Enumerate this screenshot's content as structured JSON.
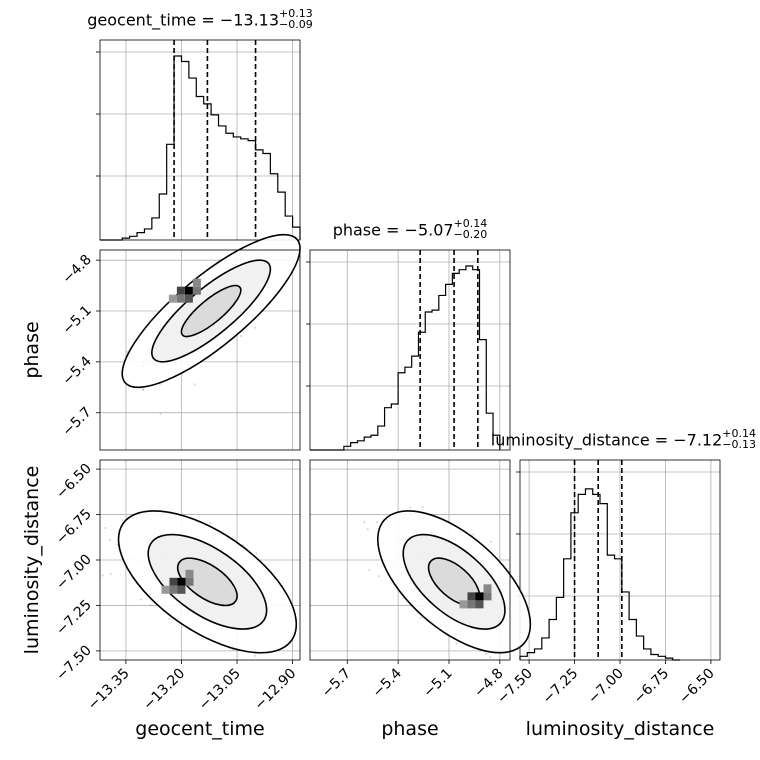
{
  "chart_data": {
    "type": "corner",
    "parameters": [
      "geocent_time",
      "phase",
      "luminosity_distance"
    ],
    "titles": [
      {
        "label": "geocent_time = −13.13",
        "sup": "+0.13",
        "sub": "−0.09"
      },
      {
        "label": "phase = −5.07",
        "sup": "+0.14",
        "sub": "−0.20"
      },
      {
        "label": "luminosity_distance = −7.12",
        "sup": "+0.14",
        "sub": "−0.13"
      }
    ],
    "axes": [
      {
        "name": "geocent_time",
        "range": [
          -13.42,
          -12.88
        ],
        "ticks": [
          -13.35,
          -13.2,
          -13.05,
          -12.9
        ],
        "tick_labels": [
          "−13.35",
          "−13.20",
          "−13.05",
          "−12.90"
        ]
      },
      {
        "name": "phase",
        "range": [
          -5.92,
          -4.74
        ],
        "ticks": [
          -5.7,
          -5.4,
          -5.1,
          -4.8
        ],
        "tick_labels": [
          "−5.7",
          "−5.4",
          "−5.1",
          "−4.8"
        ]
      },
      {
        "name": "luminosity_distance",
        "range": [
          -7.55,
          -6.45
        ],
        "ticks": [
          -7.5,
          -7.25,
          -7.0,
          -6.75,
          -6.5
        ],
        "tick_labels": [
          "−7.50",
          "−7.25",
          "−7.00",
          "−6.75",
          "−6.50"
        ]
      }
    ],
    "histograms": [
      {
        "param": "geocent_time",
        "quantiles": [
          -13.22,
          -13.13,
          -13.0
        ],
        "edges": [
          -13.42,
          -13.4,
          -13.38,
          -13.36,
          -13.34,
          -13.32,
          -13.3,
          -13.28,
          -13.26,
          -13.24,
          -13.22,
          -13.2,
          -13.18,
          -13.16,
          -13.14,
          -13.12,
          -13.1,
          -13.08,
          -13.06,
          -13.04,
          -13.02,
          -13.0,
          -12.98,
          -12.96,
          -12.94,
          -12.92,
          -12.9,
          -12.88
        ],
        "counts": [
          0,
          0,
          0,
          0.01,
          0.02,
          0.04,
          0.06,
          0.12,
          0.25,
          0.52,
          1.0,
          0.97,
          0.88,
          0.78,
          0.74,
          0.68,
          0.62,
          0.58,
          0.56,
          0.55,
          0.54,
          0.49,
          0.47,
          0.36,
          0.26,
          0.13,
          0.07
        ]
      },
      {
        "param": "phase",
        "quantiles": [
          -5.27,
          -5.07,
          -4.93
        ],
        "edges": [
          -5.92,
          -5.88,
          -5.84,
          -5.8,
          -5.76,
          -5.72,
          -5.68,
          -5.64,
          -5.6,
          -5.56,
          -5.52,
          -5.48,
          -5.44,
          -5.4,
          -5.36,
          -5.32,
          -5.28,
          -5.24,
          -5.2,
          -5.16,
          -5.12,
          -5.08,
          -5.04,
          -5.0,
          -4.96,
          -4.92,
          -4.88,
          -4.84,
          -4.8
        ],
        "counts": [
          0,
          0,
          0,
          0,
          0,
          0.02,
          0.04,
          0.05,
          0.07,
          0.08,
          0.13,
          0.23,
          0.25,
          0.42,
          0.45,
          0.51,
          0.64,
          0.75,
          0.76,
          0.84,
          0.9,
          0.96,
          0.98,
          1.0,
          0.98,
          0.6,
          0.2,
          0.08
        ]
      },
      {
        "param": "luminosity_distance",
        "quantiles": [
          -7.25,
          -7.12,
          -6.99
        ],
        "edges": [
          -7.55,
          -7.51,
          -7.47,
          -7.43,
          -7.39,
          -7.35,
          -7.31,
          -7.27,
          -7.23,
          -7.19,
          -7.15,
          -7.11,
          -7.07,
          -7.03,
          -6.99,
          -6.95,
          -6.91,
          -6.87,
          -6.83,
          -6.79,
          -6.75,
          -6.71,
          -6.67
        ],
        "counts": [
          0.02,
          0.04,
          0.06,
          0.12,
          0.22,
          0.34,
          0.55,
          0.8,
          0.9,
          0.93,
          0.9,
          0.85,
          0.57,
          0.55,
          0.37,
          0.22,
          0.13,
          0.06,
          0.03,
          0.02,
          0.01,
          0.0
        ]
      }
    ],
    "joint": [
      {
        "x": "geocent_time",
        "y": "phase",
        "mean": [
          -13.12,
          -5.1
        ],
        "std": [
          0.08,
          0.15
        ],
        "corr": 0.82,
        "peak": [
          -13.18,
          -4.98
        ]
      },
      {
        "x": "geocent_time",
        "y": "luminosity_distance",
        "mean": [
          -13.13,
          -7.12
        ],
        "std": [
          0.08,
          0.13
        ],
        "corr": -0.6,
        "peak": [
          -13.2,
          -7.12
        ]
      },
      {
        "x": "phase",
        "y": "luminosity_distance",
        "mean": [
          -5.07,
          -7.12
        ],
        "std": [
          0.15,
          0.13
        ],
        "corr": -0.6,
        "peak": [
          -4.92,
          -7.2
        ]
      }
    ],
    "contour_levels": [
      "39%",
      "86%",
      "99%"
    ],
    "grid": true
  }
}
